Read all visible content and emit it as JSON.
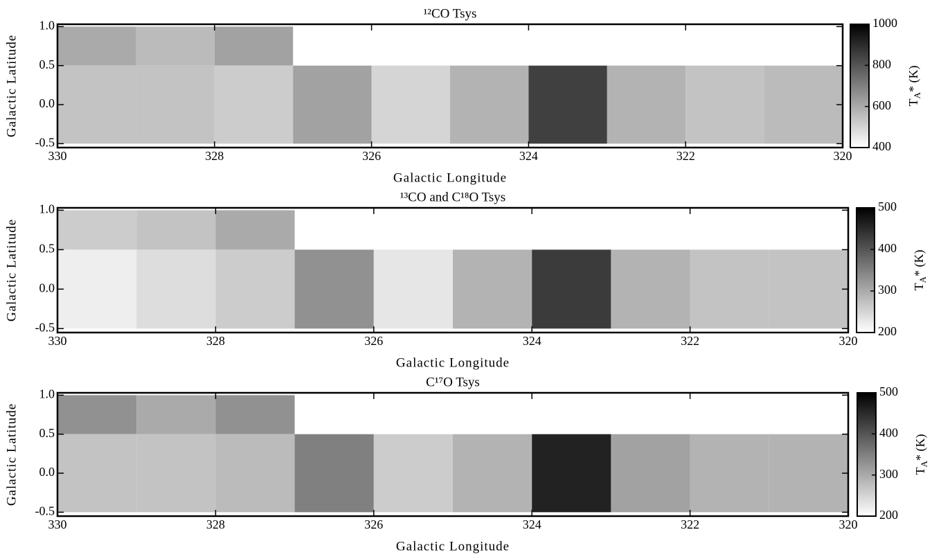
{
  "chart_data": [
    {
      "type": "heatmap",
      "title": "¹²CO Tsys",
      "xlabel": "Galactic Longitude",
      "ylabel": "Galactic Latitude",
      "colorbar_label": {
        "main": "T",
        "sub": "A",
        "rest": "* (K)"
      },
      "xlim": [
        330,
        320
      ],
      "xticks": [
        330,
        328,
        326,
        324,
        322,
        320
      ],
      "ylim": [
        -0.55,
        1.03
      ],
      "yticks": [
        -0.5,
        {
          "value": 0,
          "label": "0.0"
        },
        0.5,
        {
          "value": 1,
          "label": "1.0"
        }
      ],
      "clim": [
        400,
        1000
      ],
      "cticks": [
        400,
        600,
        800,
        1000
      ],
      "tiles": [
        {
          "l": [
            330,
            329
          ],
          "b": [
            0.5,
            1.0
          ],
          "value": 600
        },
        {
          "l": [
            329,
            328
          ],
          "b": [
            0.5,
            1.0
          ],
          "value": 560
        },
        {
          "l": [
            328,
            327
          ],
          "b": [
            0.5,
            1.0
          ],
          "value": 620
        },
        {
          "l": [
            330,
            329
          ],
          "b": [
            -0.5,
            0.5
          ],
          "value": 540
        },
        {
          "l": [
            329,
            328
          ],
          "b": [
            -0.5,
            0.5
          ],
          "value": 540
        },
        {
          "l": [
            328,
            327
          ],
          "b": [
            -0.5,
            0.5
          ],
          "value": 520
        },
        {
          "l": [
            327,
            326
          ],
          "b": [
            -0.5,
            0.5
          ],
          "value": 620
        },
        {
          "l": [
            326,
            325
          ],
          "b": [
            -0.5,
            0.5
          ],
          "value": 500
        },
        {
          "l": [
            325,
            324
          ],
          "b": [
            -0.5,
            0.5
          ],
          "value": 580
        },
        {
          "l": [
            324,
            323
          ],
          "b": [
            -0.5,
            0.5
          ],
          "value": 850
        },
        {
          "l": [
            323,
            322
          ],
          "b": [
            -0.5,
            0.5
          ],
          "value": 580
        },
        {
          "l": [
            322,
            321
          ],
          "b": [
            -0.5,
            0.5
          ],
          "value": 540
        },
        {
          "l": [
            321,
            320
          ],
          "b": [
            -0.5,
            0.5
          ],
          "value": 560
        }
      ]
    },
    {
      "type": "heatmap",
      "title": "¹³CO and C¹⁸O Tsys",
      "xlabel": "Galactic Longitude",
      "ylabel": "Galactic Latitude",
      "colorbar_label": {
        "main": "T",
        "sub": "A",
        "rest": "* (K)"
      },
      "xlim": [
        330,
        320
      ],
      "xticks": [
        330,
        328,
        326,
        324,
        322,
        320
      ],
      "ylim": [
        -0.55,
        1.03
      ],
      "yticks": [
        -0.5,
        {
          "value": 0,
          "label": "0.0"
        },
        0.5,
        {
          "value": 1,
          "label": "1.0"
        }
      ],
      "clim": [
        200,
        500
      ],
      "cticks": [
        200,
        300,
        400,
        500
      ],
      "tiles": [
        {
          "l": [
            330,
            329
          ],
          "b": [
            0.5,
            1.0
          ],
          "value": 260
        },
        {
          "l": [
            329,
            328
          ],
          "b": [
            0.5,
            1.0
          ],
          "value": 270
        },
        {
          "l": [
            328,
            327
          ],
          "b": [
            0.5,
            1.0
          ],
          "value": 300
        },
        {
          "l": [
            330,
            329
          ],
          "b": [
            -0.5,
            0.5
          ],
          "value": 220
        },
        {
          "l": [
            329,
            328
          ],
          "b": [
            -0.5,
            0.5
          ],
          "value": 240
        },
        {
          "l": [
            328,
            327
          ],
          "b": [
            -0.5,
            0.5
          ],
          "value": 260
        },
        {
          "l": [
            327,
            326
          ],
          "b": [
            -0.5,
            0.5
          ],
          "value": 330
        },
        {
          "l": [
            326,
            325
          ],
          "b": [
            -0.5,
            0.5
          ],
          "value": 230
        },
        {
          "l": [
            325,
            324
          ],
          "b": [
            -0.5,
            0.5
          ],
          "value": 290
        },
        {
          "l": [
            324,
            323
          ],
          "b": [
            -0.5,
            0.5
          ],
          "value": 430
        },
        {
          "l": [
            323,
            322
          ],
          "b": [
            -0.5,
            0.5
          ],
          "value": 290
        },
        {
          "l": [
            322,
            321
          ],
          "b": [
            -0.5,
            0.5
          ],
          "value": 270
        },
        {
          "l": [
            321,
            320
          ],
          "b": [
            -0.5,
            0.5
          ],
          "value": 270
        }
      ]
    },
    {
      "type": "heatmap",
      "title": "C¹⁷O Tsys",
      "xlabel": "Galactic Longitude",
      "ylabel": "Galactic Latitude",
      "colorbar_label": {
        "main": "T",
        "sub": "A",
        "rest": "* (K)"
      },
      "xlim": [
        330,
        320
      ],
      "xticks": [
        330,
        328,
        326,
        324,
        322,
        320
      ],
      "ylim": [
        -0.55,
        1.03
      ],
      "yticks": [
        -0.5,
        {
          "value": 0,
          "label": "0.0"
        },
        0.5,
        {
          "value": 1,
          "label": "1.0"
        }
      ],
      "clim": [
        200,
        500
      ],
      "cticks": [
        200,
        300,
        400,
        500
      ],
      "tiles": [
        {
          "l": [
            330,
            329
          ],
          "b": [
            0.5,
            1.0
          ],
          "value": 330
        },
        {
          "l": [
            329,
            328
          ],
          "b": [
            0.5,
            1.0
          ],
          "value": 300
        },
        {
          "l": [
            328,
            327
          ],
          "b": [
            0.5,
            1.0
          ],
          "value": 330
        },
        {
          "l": [
            330,
            329
          ],
          "b": [
            -0.5,
            0.5
          ],
          "value": 270
        },
        {
          "l": [
            329,
            328
          ],
          "b": [
            -0.5,
            0.5
          ],
          "value": 270
        },
        {
          "l": [
            328,
            327
          ],
          "b": [
            -0.5,
            0.5
          ],
          "value": 280
        },
        {
          "l": [
            327,
            326
          ],
          "b": [
            -0.5,
            0.5
          ],
          "value": 350
        },
        {
          "l": [
            326,
            325
          ],
          "b": [
            -0.5,
            0.5
          ],
          "value": 260
        },
        {
          "l": [
            325,
            324
          ],
          "b": [
            -0.5,
            0.5
          ],
          "value": 290
        },
        {
          "l": [
            324,
            323
          ],
          "b": [
            -0.5,
            0.5
          ],
          "value": 460
        },
        {
          "l": [
            323,
            322
          ],
          "b": [
            -0.5,
            0.5
          ],
          "value": 310
        },
        {
          "l": [
            322,
            321
          ],
          "b": [
            -0.5,
            0.5
          ],
          "value": 290
        },
        {
          "l": [
            321,
            320
          ],
          "b": [
            -0.5,
            0.5
          ],
          "value": 290
        }
      ]
    }
  ]
}
